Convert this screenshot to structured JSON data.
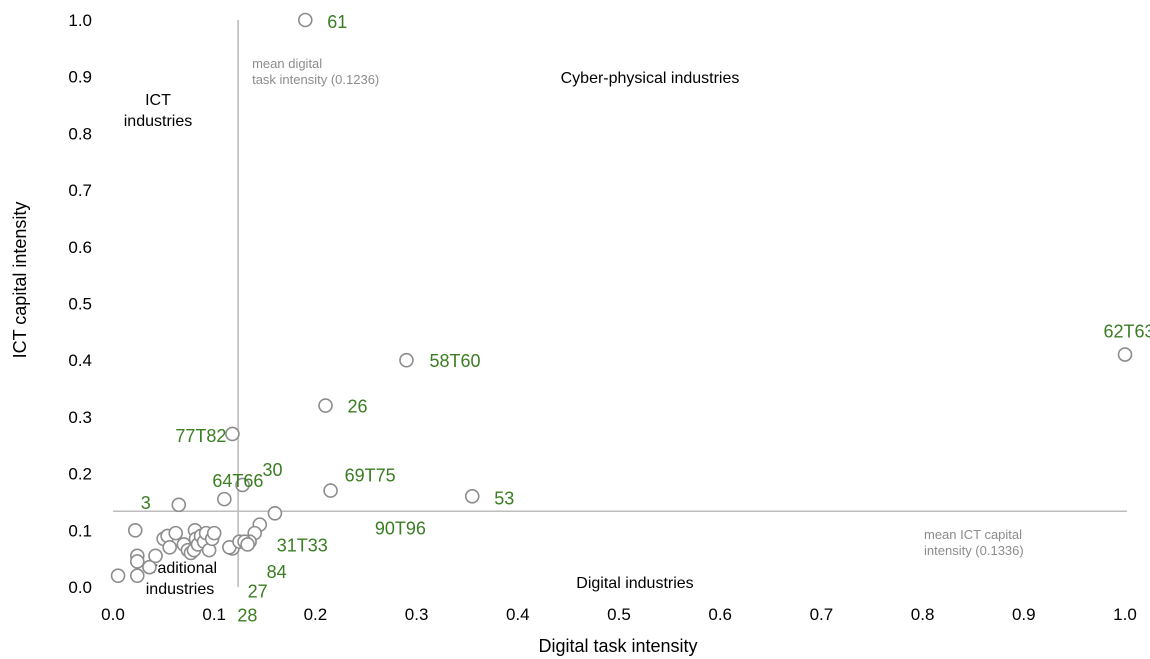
{
  "chart_data": {
    "type": "scatter",
    "xlabel": "Digital task intensity",
    "ylabel": "ICT capital intensity",
    "xlim": [
      0,
      1
    ],
    "ylim": [
      0,
      1
    ],
    "x_ticks": [
      "0.0",
      "0.1",
      "0.2",
      "0.3",
      "0.4",
      "0.5",
      "0.6",
      "0.7",
      "0.8",
      "0.9",
      "1.0"
    ],
    "y_ticks": [
      "0.0",
      "0.1",
      "0.2",
      "0.3",
      "0.4",
      "0.5",
      "0.6",
      "0.7",
      "0.8",
      "0.9",
      "1.0"
    ],
    "grid": false,
    "legend": "none",
    "reference_lines": [
      {
        "axis": "x",
        "value": 0.1236,
        "label_lines": [
          "mean digital",
          "task intensity (0.1236)"
        ]
      },
      {
        "axis": "y",
        "value": 0.1336,
        "label_lines": [
          "mean ICT capital",
          "intensity (0.1336)"
        ]
      }
    ],
    "quadrant_labels": {
      "top_left": [
        "ICT",
        "industries"
      ],
      "top_right": [
        "Cyber-physical industries"
      ],
      "bottom_left": [
        "Traditional",
        "industries"
      ],
      "bottom_right": [
        "Digital industries"
      ]
    },
    "points": [
      {
        "x": 0.19,
        "y": 1.0,
        "label": "61"
      },
      {
        "x": 1.0,
        "y": 0.41,
        "label": "62T63"
      },
      {
        "x": 0.29,
        "y": 0.4,
        "label": "58T60"
      },
      {
        "x": 0.21,
        "y": 0.32,
        "label": "26"
      },
      {
        "x": 0.118,
        "y": 0.27,
        "label": "77T82"
      },
      {
        "x": 0.128,
        "y": 0.18,
        "label": "30"
      },
      {
        "x": 0.215,
        "y": 0.17,
        "label": "69T75"
      },
      {
        "x": 0.355,
        "y": 0.16,
        "label": "53"
      },
      {
        "x": 0.11,
        "y": 0.155,
        "label": "64T66"
      },
      {
        "x": 0.065,
        "y": 0.145,
        "label": "3"
      },
      {
        "x": 0.16,
        "y": 0.13,
        "label": "90T96"
      },
      {
        "x": 0.145,
        "y": 0.11,
        "label": "31T33"
      },
      {
        "x": 0.14,
        "y": 0.095,
        "label": "84"
      },
      {
        "x": 0.135,
        "y": 0.08,
        "label": "27"
      },
      {
        "x": 0.118,
        "y": 0.068,
        "label": "28"
      },
      {
        "x": 0.022,
        "y": 0.1,
        "label": ""
      },
      {
        "x": 0.024,
        "y": 0.055,
        "label": ""
      },
      {
        "x": 0.024,
        "y": 0.045,
        "label": ""
      },
      {
        "x": 0.024,
        "y": 0.02,
        "label": ""
      },
      {
        "x": 0.005,
        "y": 0.02,
        "label": ""
      },
      {
        "x": 0.036,
        "y": 0.035,
        "label": ""
      },
      {
        "x": 0.042,
        "y": 0.055,
        "label": ""
      },
      {
        "x": 0.05,
        "y": 0.085,
        "label": ""
      },
      {
        "x": 0.054,
        "y": 0.09,
        "label": ""
      },
      {
        "x": 0.056,
        "y": 0.07,
        "label": ""
      },
      {
        "x": 0.062,
        "y": 0.095,
        "label": ""
      },
      {
        "x": 0.07,
        "y": 0.075,
        "label": ""
      },
      {
        "x": 0.074,
        "y": 0.065,
        "label": ""
      },
      {
        "x": 0.077,
        "y": 0.06,
        "label": ""
      },
      {
        "x": 0.08,
        "y": 0.065,
        "label": ""
      },
      {
        "x": 0.081,
        "y": 0.1,
        "label": ""
      },
      {
        "x": 0.082,
        "y": 0.085,
        "label": ""
      },
      {
        "x": 0.084,
        "y": 0.075,
        "label": ""
      },
      {
        "x": 0.087,
        "y": 0.09,
        "label": ""
      },
      {
        "x": 0.09,
        "y": 0.08,
        "label": ""
      },
      {
        "x": 0.092,
        "y": 0.095,
        "label": ""
      },
      {
        "x": 0.095,
        "y": 0.065,
        "label": ""
      },
      {
        "x": 0.098,
        "y": 0.085,
        "label": ""
      },
      {
        "x": 0.1,
        "y": 0.095,
        "label": ""
      },
      {
        "x": 0.115,
        "y": 0.07,
        "label": ""
      },
      {
        "x": 0.125,
        "y": 0.08,
        "label": ""
      },
      {
        "x": 0.13,
        "y": 0.08,
        "label": ""
      },
      {
        "x": 0.133,
        "y": 0.075,
        "label": ""
      }
    ]
  }
}
